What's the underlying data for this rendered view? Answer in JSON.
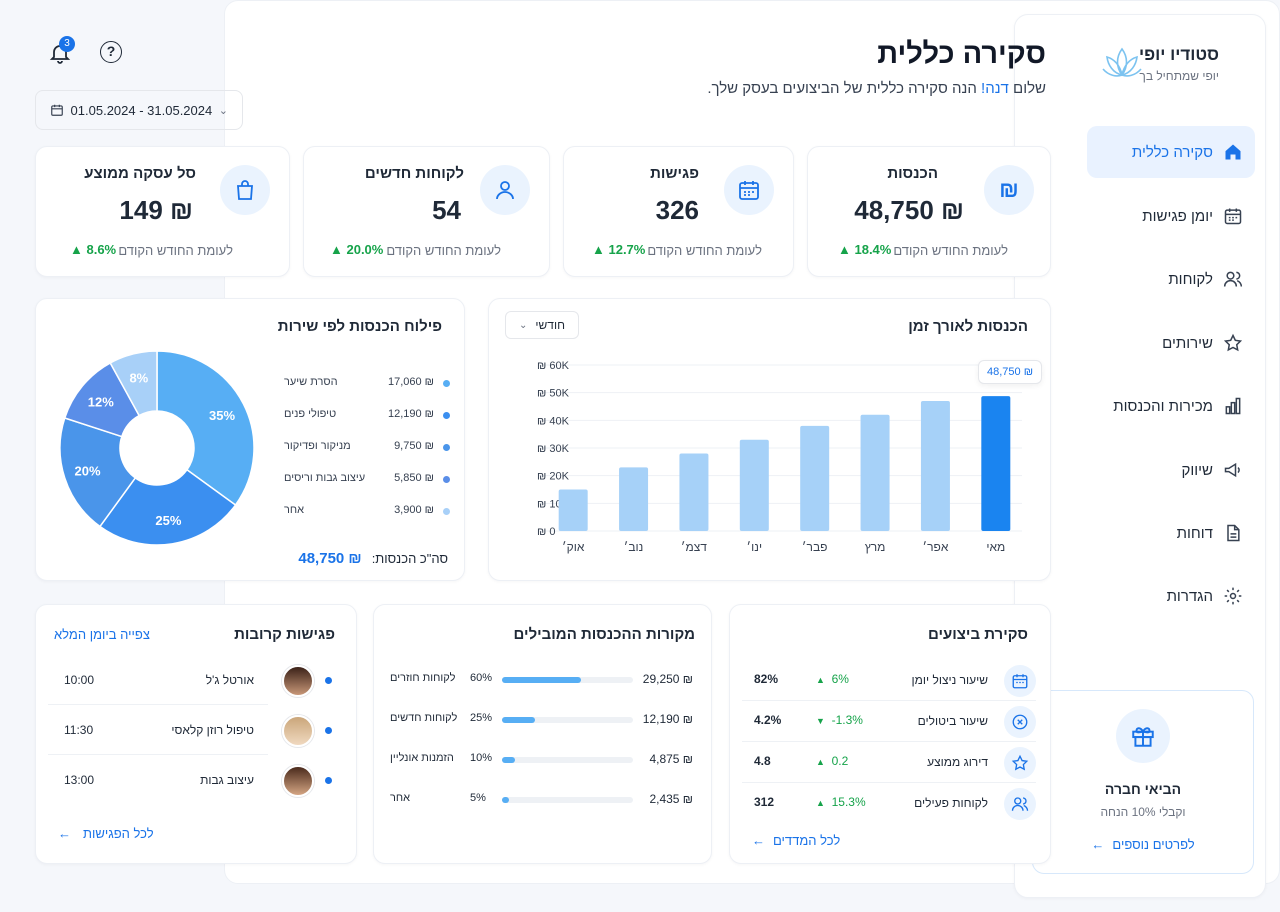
{
  "brand": {
    "name": "סטודיו יופי",
    "tagline": "יופי שמתחיל בך"
  },
  "nav": [
    {
      "label": "סקירה כללית",
      "icon": "home-icon",
      "active": true
    },
    {
      "label": "יומן פגישות",
      "icon": "calendar-icon"
    },
    {
      "label": "לקוחות",
      "icon": "users-icon"
    },
    {
      "label": "שירותים",
      "icon": "star-icon"
    },
    {
      "label": "מכירות והכנסות",
      "icon": "bar-chart-icon"
    },
    {
      "label": "שיווק",
      "icon": "megaphone-icon"
    },
    {
      "label": "דוחות",
      "icon": "document-icon"
    },
    {
      "label": "הגדרות",
      "icon": "gear-icon"
    }
  ],
  "promo": {
    "title": "הביאי חברה",
    "text": "וקבלי 10% הנחה",
    "link": "לפרטים נוספים"
  },
  "header": {
    "title": "סקירה כללית",
    "greeting_prefix": "שלום",
    "user_name": "דנה!",
    "greeting_suffix": "הנה סקירה כללית של הביצועים בעסק שלך.",
    "notifications_count": "3",
    "date_range": "01.05.2024 - 31.05.2024"
  },
  "kpis": [
    {
      "label": "הכנסות",
      "value": "48,750 ₪",
      "change": "18.4%",
      "foot": "לעומת החודש הקודם",
      "icon": "shekel-icon"
    },
    {
      "label": "פגישות",
      "value": "326",
      "change": "12.7%",
      "foot": "לעומת החודש הקודם",
      "icon": "calendar-icon"
    },
    {
      "label": "לקוחות חדשים",
      "value": "54",
      "change": "20.0%",
      "foot": "לעומת החודש הקודם",
      "icon": "user-icon"
    },
    {
      "label": "סל עסקה ממוצע",
      "value": "149 ₪",
      "change": "8.6%",
      "foot": "לעומת החודש הקודם",
      "icon": "shopping-bag-icon"
    }
  ],
  "revenue_chart": {
    "title": "הכנסות לאורך זמן",
    "period": "חודשי",
    "tooltip": "48,750 ₪"
  },
  "pie_chart": {
    "title": "פילוח הכנסות לפי שירות",
    "total_label": "סה\"כ הכנסות:",
    "total_value": "48,750 ₪",
    "legend": [
      {
        "name": "הסרת שיער",
        "value": "17,060 ₪",
        "color": "#57aef4"
      },
      {
        "name": "טיפולי פנים",
        "value": "12,190 ₪",
        "color": "#3b8ff0"
      },
      {
        "name": "מניקור ופדיקור",
        "value": "9,750 ₪",
        "color": "#4a95ea"
      },
      {
        "name": "עיצוב גבות וריסים",
        "value": "5,850 ₪",
        "color": "#5a8ee8"
      },
      {
        "name": "אחר",
        "value": "3,900 ₪",
        "color": "#a8d0f8"
      }
    ]
  },
  "chart_data": [
    {
      "type": "bar",
      "title": "הכנסות לאורך זמן",
      "categories": [
        "אוק׳",
        "נוב׳",
        "דצמ׳",
        "ינו׳",
        "פבר׳",
        "מרץ",
        "אפר׳",
        "מאי"
      ],
      "values": [
        15000,
        23000,
        28000,
        33000,
        38000,
        42000,
        47000,
        48750
      ],
      "yticks": [
        "0 ₪",
        "10K ₪",
        "20K ₪",
        "30K ₪",
        "40K ₪",
        "50K ₪",
        "60K ₪"
      ],
      "ylim": [
        0,
        60000
      ],
      "highlight_color": "#1a84f0",
      "bar_color": "#a6d1f8",
      "grid": true
    },
    {
      "type": "pie",
      "title": "פילוח הכנסות לפי שירות",
      "labels": [
        "הסרת שיער",
        "טיפולי פנים",
        "מניקור ופדיקור",
        "עיצוב גבות וריסים",
        "אחר"
      ],
      "values": [
        35,
        25,
        20,
        12,
        8
      ],
      "value_labels": [
        "35%",
        "25%",
        "20%",
        "12%",
        "8%"
      ],
      "colors": [
        "#57aef4",
        "#3b8ff0",
        "#4a95ea",
        "#5a8ee8",
        "#a8d0f8"
      ]
    }
  ],
  "performance": {
    "title": "סקירת ביצועים",
    "rows": [
      {
        "label": "שיעור ניצול יומן",
        "change": "6%",
        "dir": "up",
        "value": "82%",
        "icon": "calendar-icon"
      },
      {
        "label": "שיעור ביטולים",
        "change": "-1.3%",
        "dir": "down",
        "value": "4.2%",
        "icon": "x-circle-icon"
      },
      {
        "label": "דירוג ממוצע",
        "change": "0.2",
        "dir": "up",
        "value": "4.8",
        "icon": "star-icon"
      },
      {
        "label": "לקוחות פעילים",
        "change": "15.3%",
        "dir": "up",
        "value": "312",
        "icon": "users-icon"
      }
    ],
    "link": "לכל המדדים"
  },
  "sources": {
    "title": "מקורות ההכנסות המובילים",
    "rows": [
      {
        "label": "לקוחות חוזרים",
        "pct": "60%",
        "fraction": 0.6,
        "value": "29,250 ₪"
      },
      {
        "label": "לקוחות חדשים",
        "pct": "25%",
        "fraction": 0.25,
        "value": "12,190 ₪"
      },
      {
        "label": "הזמנות אונליין",
        "pct": "10%",
        "fraction": 0.1,
        "value": "4,875 ₪"
      },
      {
        "label": "אחר",
        "pct": "5%",
        "fraction": 0.05,
        "value": "2,435 ₪"
      }
    ]
  },
  "appointments": {
    "title": "פגישות קרובות",
    "view_link": "צפייה ביומן המלא",
    "rows": [
      {
        "name": "אורטל ג'ל",
        "time": "10:00"
      },
      {
        "name": "טיפול רוזן קלאסי",
        "time": "11:30"
      },
      {
        "name": "עיצוב גבות",
        "time": "13:00"
      }
    ],
    "all_link": "לכל הפגישות"
  }
}
